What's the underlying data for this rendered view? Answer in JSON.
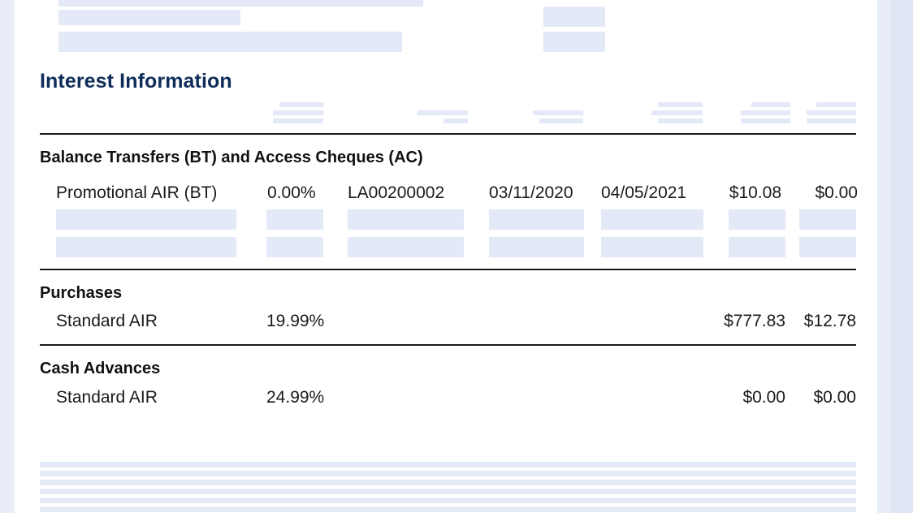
{
  "section_title": "Interest Information",
  "groups": {
    "bt": {
      "heading": "Balance Transfers (BT) and Access Cheques (AC)",
      "row": {
        "label": "Promotional AIR (BT)",
        "rate": "0.00%",
        "ref": "LA00200002",
        "start_date": "03/11/2020",
        "end_date": "04/05/2021",
        "balance": "$10.08",
        "interest": "$0.00"
      }
    },
    "purchases": {
      "heading": "Purchases",
      "row": {
        "label": "Standard AIR",
        "rate": "19.99%",
        "balance": "$777.83",
        "interest": "$12.78"
      }
    },
    "cash": {
      "heading": "Cash Advances",
      "row": {
        "label": "Standard AIR",
        "rate": "24.99%",
        "balance": "$0.00",
        "interest": "$0.00"
      }
    }
  },
  "colors": {
    "title": "#0f2d5a",
    "placeholder": "#e3e9f6",
    "rule": "#1a1a1a"
  }
}
